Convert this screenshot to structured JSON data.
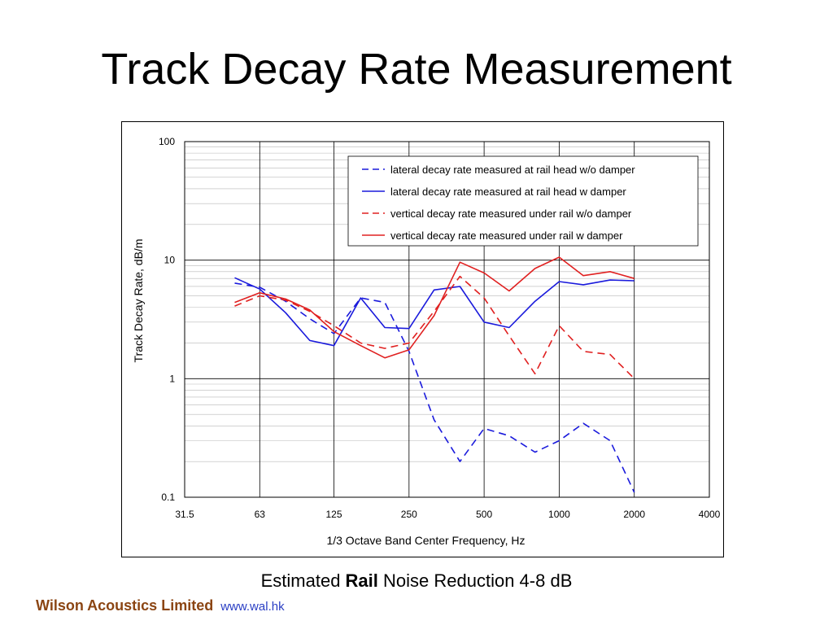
{
  "slide": {
    "title": "Track Decay Rate Measurement",
    "caption_prefix": "Estimated ",
    "caption_bold": "Rail",
    "caption_suffix": " Noise Reduction 4-8 dB",
    "footer_company": "Wilson Acoustics Limited",
    "footer_url": "www.wal.hk"
  },
  "colors": {
    "blue": "#1a1adc",
    "red": "#e02020",
    "footer_company": "#8b4513",
    "footer_url": "#2a3ec4"
  },
  "chart_data": {
    "type": "line",
    "xlabel": "1/3 Octave Band Center Frequency, Hz",
    "ylabel": "Track Decay Rate, dB/m",
    "x_scale": "log",
    "y_scale": "log",
    "xlim": [
      31.5,
      4000
    ],
    "ylim": [
      0.1,
      100
    ],
    "x_ticks": [
      "31.5",
      "63",
      "125",
      "250",
      "500",
      "1000",
      "2000",
      "4000"
    ],
    "y_ticks": [
      "0.1",
      "1",
      "10",
      "100"
    ],
    "grid": true,
    "legend_position": "top-right",
    "x": [
      50,
      63,
      80,
      100,
      125,
      160,
      200,
      250,
      315,
      400,
      500,
      630,
      800,
      1000,
      1250,
      1600,
      2000
    ],
    "series": [
      {
        "name": "lateral decay rate measured at rail head w/o damper",
        "color": "blue",
        "dash": true,
        "values": [
          6.4,
          5.9,
          4.5,
          3.2,
          2.4,
          4.8,
          4.4,
          1.7,
          0.45,
          0.2,
          0.38,
          0.33,
          0.24,
          0.3,
          0.42,
          0.3,
          0.11
        ]
      },
      {
        "name": "lateral decay rate measured at rail head w damper",
        "color": "blue",
        "dash": false,
        "values": [
          7.1,
          5.7,
          3.6,
          2.1,
          1.9,
          4.8,
          2.7,
          2.65,
          5.6,
          6.0,
          3.0,
          2.7,
          4.5,
          6.6,
          6.2,
          6.8,
          6.7
        ]
      },
      {
        "name": "vertical decay rate measured under rail w/o damper",
        "color": "red",
        "dash": true,
        "values": [
          4.1,
          5.0,
          4.6,
          3.7,
          2.8,
          2.0,
          1.8,
          2.0,
          3.7,
          7.3,
          4.8,
          2.3,
          1.1,
          2.8,
          1.7,
          1.6,
          1.0
        ]
      },
      {
        "name": "vertical decay rate measured under rail w damper",
        "color": "red",
        "dash": false,
        "values": [
          4.4,
          5.3,
          4.7,
          3.8,
          2.5,
          1.9,
          1.5,
          1.75,
          3.4,
          9.6,
          7.8,
          5.5,
          8.5,
          10.6,
          7.4,
          8.0,
          7.0
        ]
      }
    ]
  }
}
